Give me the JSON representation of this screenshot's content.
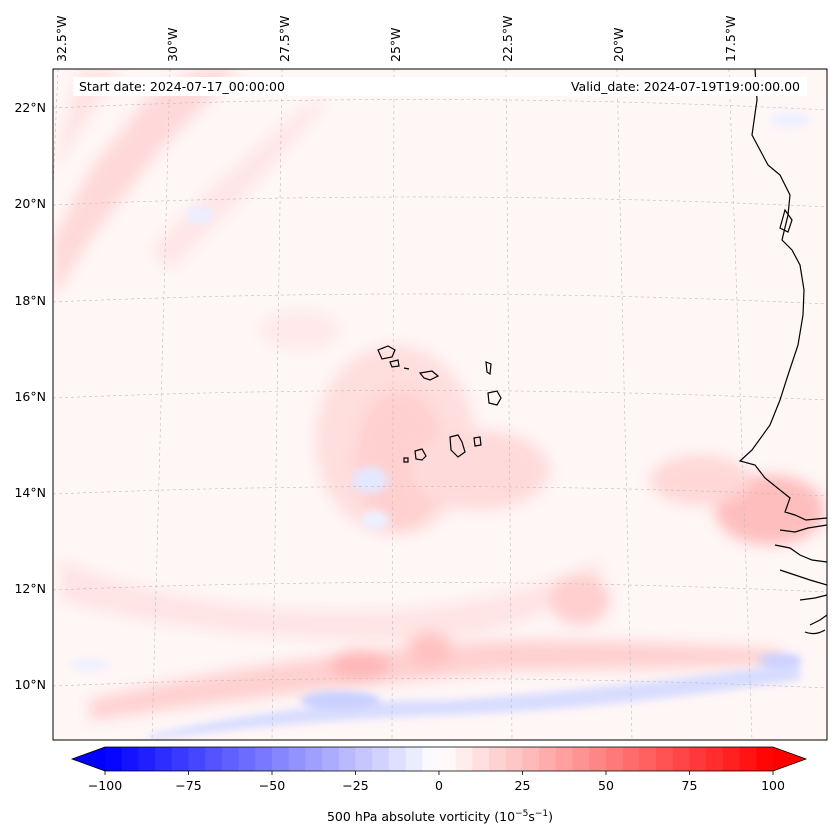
{
  "map": {
    "start_date": "Start date: 2024-07-17_00:00:00",
    "valid_date": "Valid_date: 2024-07-19T19:00:00.00",
    "lon_labels": [
      "32.5°W",
      "30°W",
      "27.5°W",
      "25°W",
      "22.5°W",
      "20°W",
      "17.5°W"
    ],
    "lat_labels": [
      "22°N",
      "20°N",
      "18°N",
      "16°N",
      "14°N",
      "12°N",
      "10°N"
    ],
    "colors": {
      "positive": "#ff0000",
      "negative": "#0000ff",
      "zero": "#ffffff"
    }
  },
  "colorbar": {
    "title": "500 hPa absolute vorticity (10",
    "title_exp1": "−5",
    "title_mid": "s",
    "title_exp2": "−1",
    "title_end": ")",
    "ticks": [
      "−100",
      "−75",
      "−50",
      "−25",
      "0",
      "25",
      "50",
      "75",
      "100"
    ],
    "min": -100,
    "max": 100,
    "step": 5
  }
}
